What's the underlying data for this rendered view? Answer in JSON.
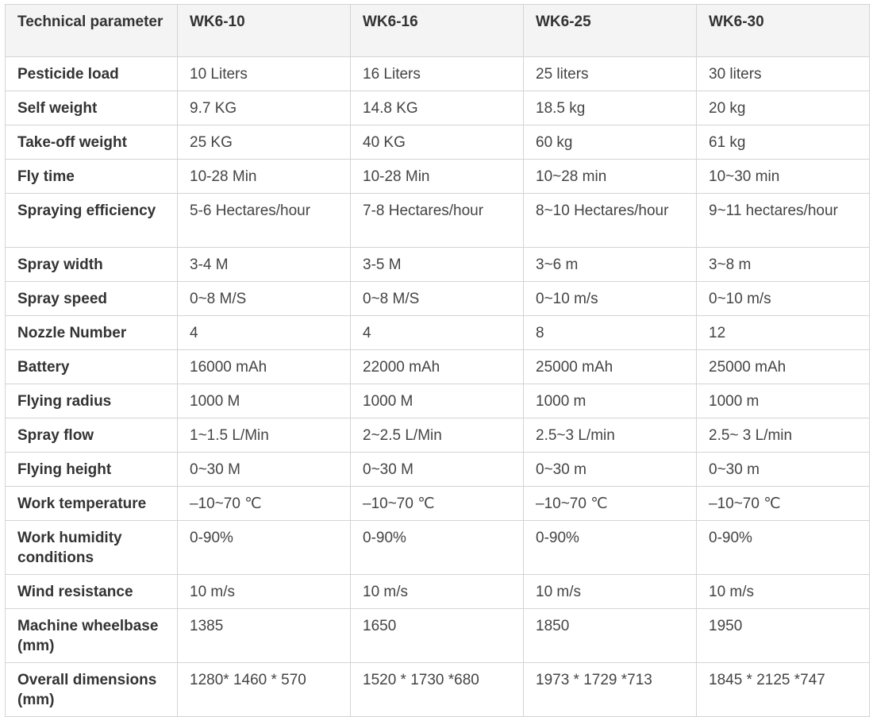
{
  "table": {
    "columns": [
      "Technical parameter",
      "WK6-10",
      "WK6-16",
      "WK6-25",
      "WK6-30"
    ],
    "rows": [
      {
        "label": "Pesticide load",
        "values": [
          "10 Liters",
          "16 Liters",
          "25 liters",
          "30 liters"
        ]
      },
      {
        "label": "Self weight",
        "values": [
          "9.7 KG",
          "14.8 KG",
          "18.5 kg",
          "20 kg"
        ]
      },
      {
        "label": "Take-off weight",
        "values": [
          "25 KG",
          "40 KG",
          "60 kg",
          "61 kg"
        ]
      },
      {
        "label": "Fly time",
        "values": [
          "10-28 Min",
          "10-28 Min",
          "10~28 min",
          "10~30 min"
        ]
      },
      {
        "label": "Spraying efficiency",
        "values": [
          "5-6 Hectares/hour",
          "7-8 Hectares/hour",
          "8~10 Hectares/hour",
          "9~11 hectares/hour"
        ]
      },
      {
        "label": "Spray width",
        "values": [
          "3-4 M",
          "3-5 M",
          "3~6 m",
          "3~8 m"
        ]
      },
      {
        "label": "Spray speed",
        "values": [
          "0~8 M/S",
          "0~8 M/S",
          "0~10 m/s",
          "0~10 m/s"
        ]
      },
      {
        "label": "Nozzle Number",
        "values": [
          "4",
          "4",
          "8",
          "12"
        ]
      },
      {
        "label": "Battery",
        "values": [
          "16000 mAh",
          "22000 mAh",
          "25000 mAh",
          "25000 mAh"
        ]
      },
      {
        "label": "Flying radius",
        "values": [
          "1000 M",
          "1000 M",
          "1000 m",
          "1000 m"
        ]
      },
      {
        "label": "Spray flow",
        "values": [
          "1~1.5 L/Min",
          "2~2.5 L/Min",
          "2.5~3 L/min",
          "2.5~ 3 L/min"
        ]
      },
      {
        "label": "Flying height",
        "values": [
          "0~30 M",
          "0~30 M",
          "0~30 m",
          "0~30 m"
        ]
      },
      {
        "label": "Work temperature",
        "values": [
          "–10~70 ℃",
          "–10~70 ℃",
          "–10~70 ℃",
          "–10~70 ℃"
        ]
      },
      {
        "label": "Work humidity conditions",
        "values": [
          "0-90%",
          "0-90%",
          "0-90%",
          "0-90%"
        ]
      },
      {
        "label": "Wind resistance",
        "values": [
          "10 m/s",
          "10 m/s",
          "10 m/s",
          "10 m/s"
        ]
      },
      {
        "label": "Machine wheelbase (mm)",
        "values": [
          "1385",
          "1650",
          "1850",
          "1950"
        ]
      },
      {
        "label": "Overall dimensions (mm)",
        "values": [
          "1280* 1460 * 570",
          "1520 * 1730 *680",
          "1973 * 1729 *713",
          "1845 * 2125 *747"
        ]
      }
    ]
  }
}
